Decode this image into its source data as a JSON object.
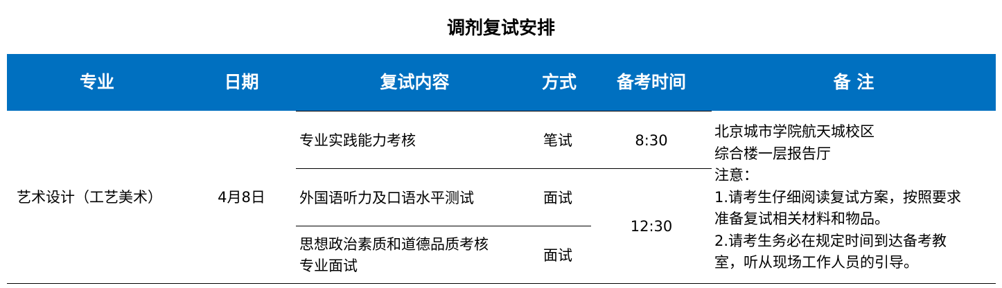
{
  "title": "调剂复试安排",
  "header": {
    "major": "专业",
    "date": "日期",
    "content": "复试内容",
    "method": "方式",
    "prep_time": "备考时间",
    "notes": "备 注"
  },
  "row": {
    "major": "艺术设计（工艺美术）",
    "date": "4月8日",
    "items": [
      {
        "content": "专业实践能力考核",
        "method": "笔试"
      },
      {
        "content": "外国语听力及口语水平测试",
        "method": "面试"
      },
      {
        "content": "思想政治素质和道德品质考核",
        "content2": "专业面试",
        "method": "面试"
      }
    ],
    "times": [
      "8:30",
      "12:30"
    ],
    "notes": [
      "北京城市学院航天城校区",
      "综合楼一层报告厅",
      "注意：",
      "1.请考生仔细阅读复试方案，按照要求",
      "准备复试相关材料和物品。",
      "2.请考生务必在规定时间到达备考教",
      "室，听从现场工作人员的引导。"
    ]
  }
}
